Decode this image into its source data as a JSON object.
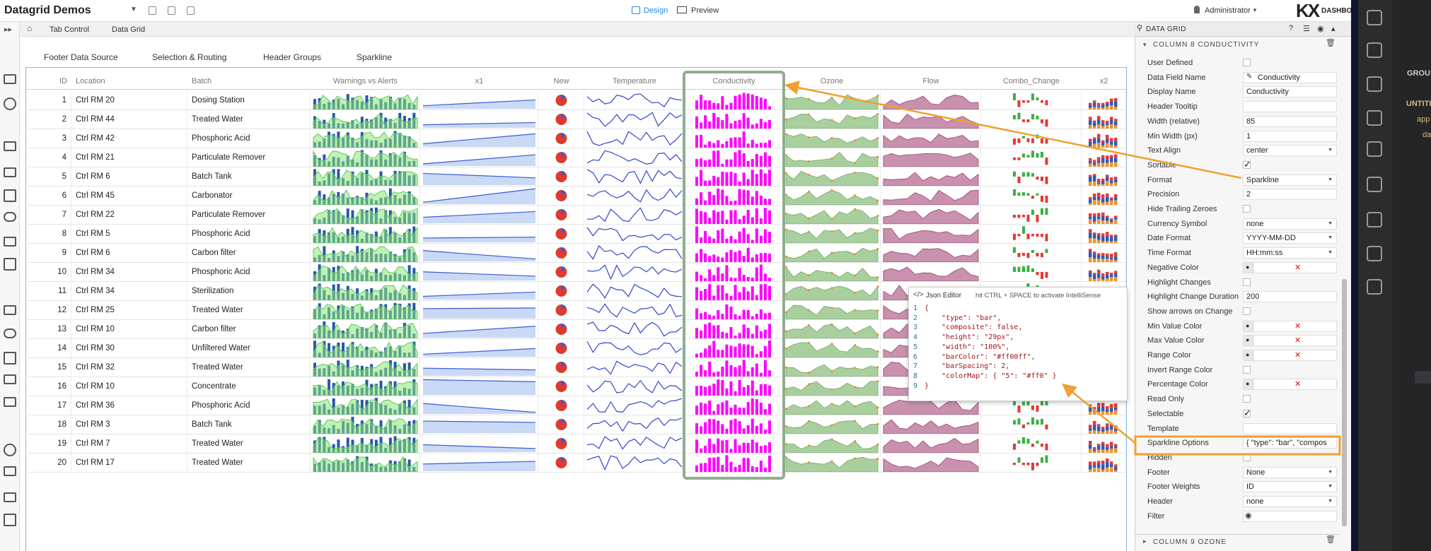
{
  "header": {
    "title": "Datagrid Demos",
    "design": "Design",
    "preview": "Preview",
    "user": "Administrator",
    "brand": "KX",
    "brand_sub": "DASHBOARDS"
  },
  "breadcrumb": [
    "Tab Control",
    "Data Grid"
  ],
  "tabs": [
    "Footer Data Source",
    "Selection & Routing",
    "Header Groups",
    "Sparkline"
  ],
  "grid": {
    "columns": [
      "ID",
      "Location",
      "Batch",
      "Warnings vs Alerts",
      "x1",
      "New",
      "Temperature",
      "Conductivity",
      "Ozone",
      "Flow",
      "Combo_Change",
      "x2"
    ],
    "rows": [
      [
        1,
        "Ctrl RM 20",
        "Dosing Station"
      ],
      [
        2,
        "Ctrl RM 44",
        "Treated Water"
      ],
      [
        3,
        "Ctrl RM 42",
        "Phosphoric Acid"
      ],
      [
        4,
        "Ctrl RM 21",
        "Particulate Remover"
      ],
      [
        5,
        "Ctrl RM 6",
        "Batch Tank"
      ],
      [
        6,
        "Ctrl RM 45",
        "Carbonator"
      ],
      [
        7,
        "Ctrl RM 22",
        "Particulate Remover"
      ],
      [
        8,
        "Ctrl RM 5",
        "Phosphoric Acid"
      ],
      [
        9,
        "Ctrl RM 6",
        "Carbon filter"
      ],
      [
        10,
        "Ctrl RM 34",
        "Phosphoric Acid"
      ],
      [
        11,
        "Ctrl RM 34",
        "Sterilization"
      ],
      [
        12,
        "Ctrl RM 25",
        "Treated Water"
      ],
      [
        13,
        "Ctrl RM 10",
        "Carbon filter"
      ],
      [
        14,
        "Ctrl RM 30",
        "Unfiltered Water"
      ],
      [
        15,
        "Ctrl RM 32",
        "Treated Water"
      ],
      [
        16,
        "Ctrl RM 10",
        "Concentrate"
      ],
      [
        17,
        "Ctrl RM 36",
        "Phosphoric Acid"
      ],
      [
        18,
        "Ctrl RM 3",
        "Batch Tank"
      ],
      [
        19,
        "Ctrl RM 7",
        "Treated Water"
      ],
      [
        20,
        "Ctrl RM 17",
        "Treated Water"
      ]
    ]
  },
  "panel": {
    "title": "DATA GRID",
    "section": "COLUMN 8 CONDUCTIVITY",
    "properties": [
      {
        "label": "User Defined",
        "input": "check",
        "checked": false
      },
      {
        "label": "Data Field Name",
        "input": "field",
        "value": "Conductivity"
      },
      {
        "label": "Display Name",
        "input": "text",
        "value": "Conductivity"
      },
      {
        "label": "Header Tooltip",
        "input": "text"
      },
      {
        "label": "Width (relative)",
        "input": "text",
        "value": 85
      },
      {
        "label": "Min Width (px)",
        "input": "text",
        "value": 1
      },
      {
        "label": "Text Align",
        "input": "select",
        "value": "center"
      },
      {
        "label": "Sortable",
        "input": "check",
        "checked": true
      },
      {
        "label": "Format",
        "input": "select",
        "value": "Sparkline"
      },
      {
        "label": "Precision",
        "input": "text",
        "value": 2
      },
      {
        "label": "Hide Trailing Zeroes",
        "input": "check",
        "checked": false
      },
      {
        "label": "Currency Symbol",
        "input": "select",
        "value": "none"
      },
      {
        "label": "Date Format",
        "input": "select",
        "value": "YYYY-MM-DD"
      },
      {
        "label": "Time Format",
        "input": "select",
        "value": "HH:mm:ss"
      },
      {
        "label": "Negative Color",
        "input": "color"
      },
      {
        "label": "Highlight Changes",
        "input": "check",
        "checked": false
      },
      {
        "label": "Highlight Change Duration",
        "input": "text",
        "value": 200
      },
      {
        "label": "Show arrows on Change",
        "input": "check",
        "checked": false
      },
      {
        "label": "Min Value Color",
        "input": "color"
      },
      {
        "label": "Max Value Color",
        "input": "color"
      },
      {
        "label": "Range Color",
        "input": "color"
      },
      {
        "label": "Invert Range Color",
        "input": "check",
        "checked": false
      },
      {
        "label": "Percentage Color",
        "input": "color"
      },
      {
        "label": "Read Only",
        "input": "check",
        "checked": false
      },
      {
        "label": "Selectable",
        "input": "check",
        "checked": true
      },
      {
        "label": "Template",
        "input": "text"
      },
      {
        "label": "Sparkline Options",
        "input": "text",
        "value": "{   \"type\": \"bar\",   \"compos"
      },
      {
        "label": "Hidden",
        "input": "check",
        "checked": false
      },
      {
        "label": "Footer",
        "input": "select",
        "value": "None"
      },
      {
        "label": "Footer Weights",
        "input": "select",
        "value": "ID"
      },
      {
        "label": "Header",
        "input": "select",
        "value": "none"
      },
      {
        "label": "Filter",
        "input": "eye"
      }
    ],
    "next_section": "COLUMN 9 OZONE"
  },
  "json_editor": {
    "title": "Json Editor",
    "hint": "hit CTRL + SPACE to activate IntelliSense",
    "lines": [
      {
        "n": 1,
        "code": "{"
      },
      {
        "n": 2,
        "code": "    \"type\": \"bar\","
      },
      {
        "n": 3,
        "code": "    \"composite\": false,"
      },
      {
        "n": 4,
        "code": "    \"height\": \"29px\","
      },
      {
        "n": 5,
        "code": "    \"width\": \"100%\","
      },
      {
        "n": 6,
        "code": "    \"barColor\": \"#ff00ff\","
      },
      {
        "n": 7,
        "code": "    \"barSpacing\": 2,"
      },
      {
        "n": 8,
        "code": "    \"colorMap\": { \"5\": \"#ff0\" }"
      },
      {
        "n": 9,
        "code": "}"
      }
    ]
  },
  "side_explorer": [
    "GROU",
    "UNTITI",
    "app",
    "dat"
  ]
}
